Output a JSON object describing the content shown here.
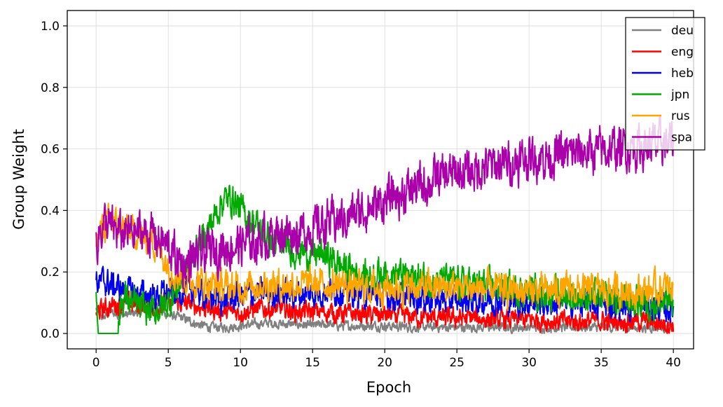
{
  "chart_data": {
    "type": "line",
    "title": "",
    "xlabel": "Epoch",
    "ylabel": "Group Weight",
    "xlim": [
      -2,
      41.4
    ],
    "ylim": [
      -0.05,
      1.05
    ],
    "xticks": [
      0,
      5,
      10,
      15,
      20,
      25,
      30,
      35,
      40
    ],
    "xtick_labels": [
      "0",
      "5",
      "10",
      "15",
      "20",
      "25",
      "30",
      "35",
      "40"
    ],
    "yticks": [
      0.0,
      0.2,
      0.4,
      0.6,
      0.8,
      1.0
    ],
    "ytick_labels": [
      "0.0",
      "0.2",
      "0.4",
      "0.6",
      "0.8",
      "1.0"
    ],
    "grid": true,
    "legend_position": "top-right",
    "series": [
      {
        "name": "deu",
        "color": "#808080",
        "x": [
          0,
          0.5,
          1,
          1.5,
          2,
          3,
          4,
          5,
          6,
          7,
          8,
          9,
          10,
          11,
          12,
          13,
          14,
          15,
          16,
          17,
          18,
          19,
          20,
          22,
          24,
          26,
          28,
          30,
          32,
          34,
          36,
          38,
          40
        ],
        "values": [
          0.08,
          0.05,
          0.07,
          0.06,
          0.06,
          0.07,
          0.08,
          0.06,
          0.05,
          0.03,
          0.02,
          0.02,
          0.025,
          0.03,
          0.035,
          0.03,
          0.03,
          0.025,
          0.03,
          0.025,
          0.025,
          0.025,
          0.025,
          0.02,
          0.02,
          0.02,
          0.02,
          0.02,
          0.02,
          0.02,
          0.02,
          0.02,
          0.02
        ],
        "noise": 0.012
      },
      {
        "name": "eng",
        "color": "#ff0000",
        "x": [
          0,
          0.5,
          1,
          2,
          3,
          4,
          5,
          6,
          7,
          8,
          9,
          10,
          11,
          12,
          13,
          14,
          15,
          16,
          17,
          18,
          19,
          20,
          22,
          24,
          26,
          28,
          30,
          32,
          34,
          36,
          38,
          40
        ],
        "values": [
          0.07,
          0.08,
          0.09,
          0.1,
          0.09,
          0.09,
          0.1,
          0.1,
          0.09,
          0.08,
          0.07,
          0.07,
          0.08,
          0.08,
          0.08,
          0.07,
          0.07,
          0.07,
          0.065,
          0.065,
          0.06,
          0.06,
          0.055,
          0.05,
          0.05,
          0.045,
          0.045,
          0.04,
          0.04,
          0.04,
          0.04,
          0.03
        ],
        "noise": 0.025
      },
      {
        "name": "heb",
        "color": "#0000ee",
        "x": [
          0,
          0.5,
          1,
          2,
          3,
          4,
          5,
          6,
          7,
          8,
          9,
          10,
          11,
          12,
          13,
          14,
          15,
          16,
          17,
          18,
          19,
          20,
          22,
          24,
          26,
          28,
          30,
          32,
          34,
          36,
          38,
          40
        ],
        "values": [
          0.16,
          0.17,
          0.16,
          0.14,
          0.13,
          0.12,
          0.13,
          0.14,
          0.14,
          0.12,
          0.11,
          0.12,
          0.13,
          0.13,
          0.13,
          0.13,
          0.13,
          0.14,
          0.14,
          0.13,
          0.13,
          0.12,
          0.12,
          0.11,
          0.11,
          0.11,
          0.1,
          0.1,
          0.1,
          0.09,
          0.09,
          0.08
        ],
        "noise": 0.035
      },
      {
        "name": "jpn",
        "color": "#00aa00",
        "x": [
          0,
          0.2,
          1.5,
          1.7,
          2,
          3,
          4,
          5,
          6,
          7,
          8,
          8.7,
          9.5,
          10,
          11,
          12,
          13,
          14,
          15,
          16,
          17,
          18,
          19,
          20,
          22,
          24,
          26,
          28,
          30,
          32,
          34,
          36,
          38,
          40
        ],
        "values": [
          0.14,
          0.0,
          0.0,
          0.1,
          0.12,
          0.08,
          0.07,
          0.1,
          0.18,
          0.28,
          0.36,
          0.43,
          0.44,
          0.4,
          0.36,
          0.3,
          0.29,
          0.27,
          0.26,
          0.25,
          0.22,
          0.2,
          0.19,
          0.2,
          0.18,
          0.17,
          0.16,
          0.15,
          0.14,
          0.13,
          0.12,
          0.11,
          0.1,
          0.1
        ],
        "noise": 0.04
      },
      {
        "name": "rus",
        "color": "#ffa500",
        "x": [
          0,
          0.5,
          1,
          2,
          3,
          4,
          5,
          6,
          7,
          8,
          9,
          10,
          11,
          12,
          13,
          14,
          15,
          16,
          17,
          18,
          19,
          20,
          22,
          24,
          26,
          28,
          30,
          32,
          34,
          36,
          38,
          40
        ],
        "values": [
          0.3,
          0.35,
          0.36,
          0.34,
          0.32,
          0.3,
          0.22,
          0.18,
          0.17,
          0.16,
          0.15,
          0.15,
          0.16,
          0.16,
          0.16,
          0.16,
          0.16,
          0.16,
          0.16,
          0.15,
          0.15,
          0.15,
          0.15,
          0.15,
          0.15,
          0.14,
          0.14,
          0.14,
          0.14,
          0.14,
          0.14,
          0.15
        ],
        "noise": 0.04
      },
      {
        "name": "spa",
        "color": "#aa00aa",
        "x": [
          0,
          0.5,
          1,
          2,
          3,
          4,
          5,
          6,
          7,
          8,
          9,
          10,
          11,
          12,
          13,
          14,
          15,
          16,
          17,
          18,
          19,
          20,
          22,
          24,
          26,
          28,
          30,
          32,
          34,
          36,
          38,
          40
        ],
        "values": [
          0.3,
          0.36,
          0.34,
          0.32,
          0.33,
          0.32,
          0.28,
          0.22,
          0.25,
          0.27,
          0.28,
          0.29,
          0.3,
          0.32,
          0.33,
          0.33,
          0.34,
          0.36,
          0.37,
          0.39,
          0.41,
          0.43,
          0.47,
          0.51,
          0.53,
          0.55,
          0.57,
          0.58,
          0.59,
          0.6,
          0.61,
          0.62
        ],
        "noise": 0.055
      }
    ]
  }
}
